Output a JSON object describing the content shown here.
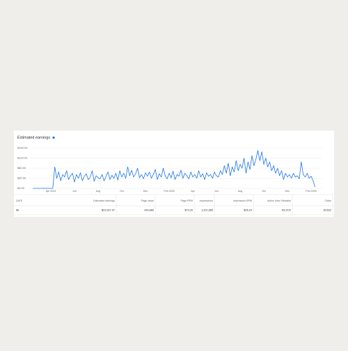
{
  "chart_data": {
    "type": "line",
    "title": "Estimated earnings",
    "color": "#1a73e8",
    "grid": true,
    "ylim": [
      0,
      160
    ],
    "yticks": [
      {
        "value": 0,
        "label": "$0.00"
      },
      {
        "value": 40,
        "label": "$40.00"
      },
      {
        "value": 80,
        "label": "$80.00"
      },
      {
        "value": 120,
        "label": "$120.00"
      },
      {
        "value": 160,
        "label": "$160.00"
      }
    ],
    "categories": [
      null,
      null,
      null,
      null,
      null,
      null,
      null,
      null,
      null,
      "Apr 2024",
      null,
      null,
      null,
      null,
      null,
      null,
      null,
      null,
      null,
      null,
      null,
      "Jun",
      null,
      null,
      null,
      null,
      null,
      null,
      null,
      null,
      null,
      null,
      null,
      "Aug",
      null,
      null,
      null,
      null,
      null,
      null,
      null,
      null,
      null,
      null,
      null,
      "Oct",
      null,
      null,
      null,
      null,
      null,
      null,
      null,
      null,
      null,
      null,
      null,
      "Dec",
      null,
      null,
      null,
      null,
      null,
      null,
      null,
      null,
      null,
      null,
      null,
      "Feb 2025",
      null,
      null,
      null,
      null,
      null,
      null,
      null,
      null,
      null,
      null,
      null,
      "Apr",
      null,
      null,
      null,
      null,
      null,
      null,
      null,
      null,
      null,
      null,
      null,
      "Jun",
      null,
      null,
      null,
      null,
      null,
      null,
      null,
      null,
      null,
      null,
      null,
      "Aug",
      null,
      null,
      null,
      null,
      null,
      null,
      null,
      null,
      null,
      null,
      null,
      "Oct",
      null,
      null,
      null,
      null,
      null,
      null,
      null,
      null,
      null,
      null,
      null,
      "Dec",
      null,
      null,
      null,
      null,
      null,
      null,
      null,
      null,
      null,
      null,
      null,
      "Feb 2026",
      null,
      null
    ],
    "values": [
      0,
      0,
      0,
      0,
      0,
      0,
      0,
      0,
      0,
      0,
      0,
      85,
      40,
      65,
      30,
      55,
      45,
      70,
      35,
      50,
      60,
      25,
      55,
      40,
      62,
      30,
      48,
      58,
      35,
      45,
      70,
      28,
      50,
      42,
      38,
      55,
      30,
      48,
      65,
      35,
      52,
      40,
      60,
      33,
      70,
      45,
      60,
      40,
      85,
      50,
      72,
      45,
      58,
      80,
      42,
      55,
      38,
      62,
      48,
      65,
      40,
      55,
      75,
      35,
      58,
      45,
      80,
      50,
      38,
      60,
      42,
      68,
      35,
      55,
      48,
      72,
      40,
      60,
      50,
      38,
      65,
      45,
      55,
      40,
      70,
      45,
      58,
      35,
      62,
      48,
      55,
      40,
      65,
      50,
      45,
      70,
      55,
      90,
      60,
      100,
      50,
      85,
      65,
      110,
      70,
      95,
      80,
      120,
      60,
      105,
      75,
      130,
      90,
      115,
      150,
      110,
      145,
      95,
      120,
      85,
      105,
      70,
      90,
      60,
      80,
      50,
      70,
      35,
      60,
      45,
      55,
      40,
      60,
      45,
      50,
      38,
      105,
      55,
      45,
      60,
      40,
      48,
      30,
      5
    ]
  },
  "table": {
    "headers": [
      "DATE",
      "Estimated earnings",
      "Page views",
      "Page RPM",
      "Impressions",
      "Impression RPM",
      "Active View Viewable",
      "Clicks"
    ],
    "rows": [
      [
        "All",
        "$31,527.47",
        "430,869",
        "$73.20",
        "1,201,665",
        "$26.24",
        "69.21%",
        "39,622"
      ]
    ]
  }
}
